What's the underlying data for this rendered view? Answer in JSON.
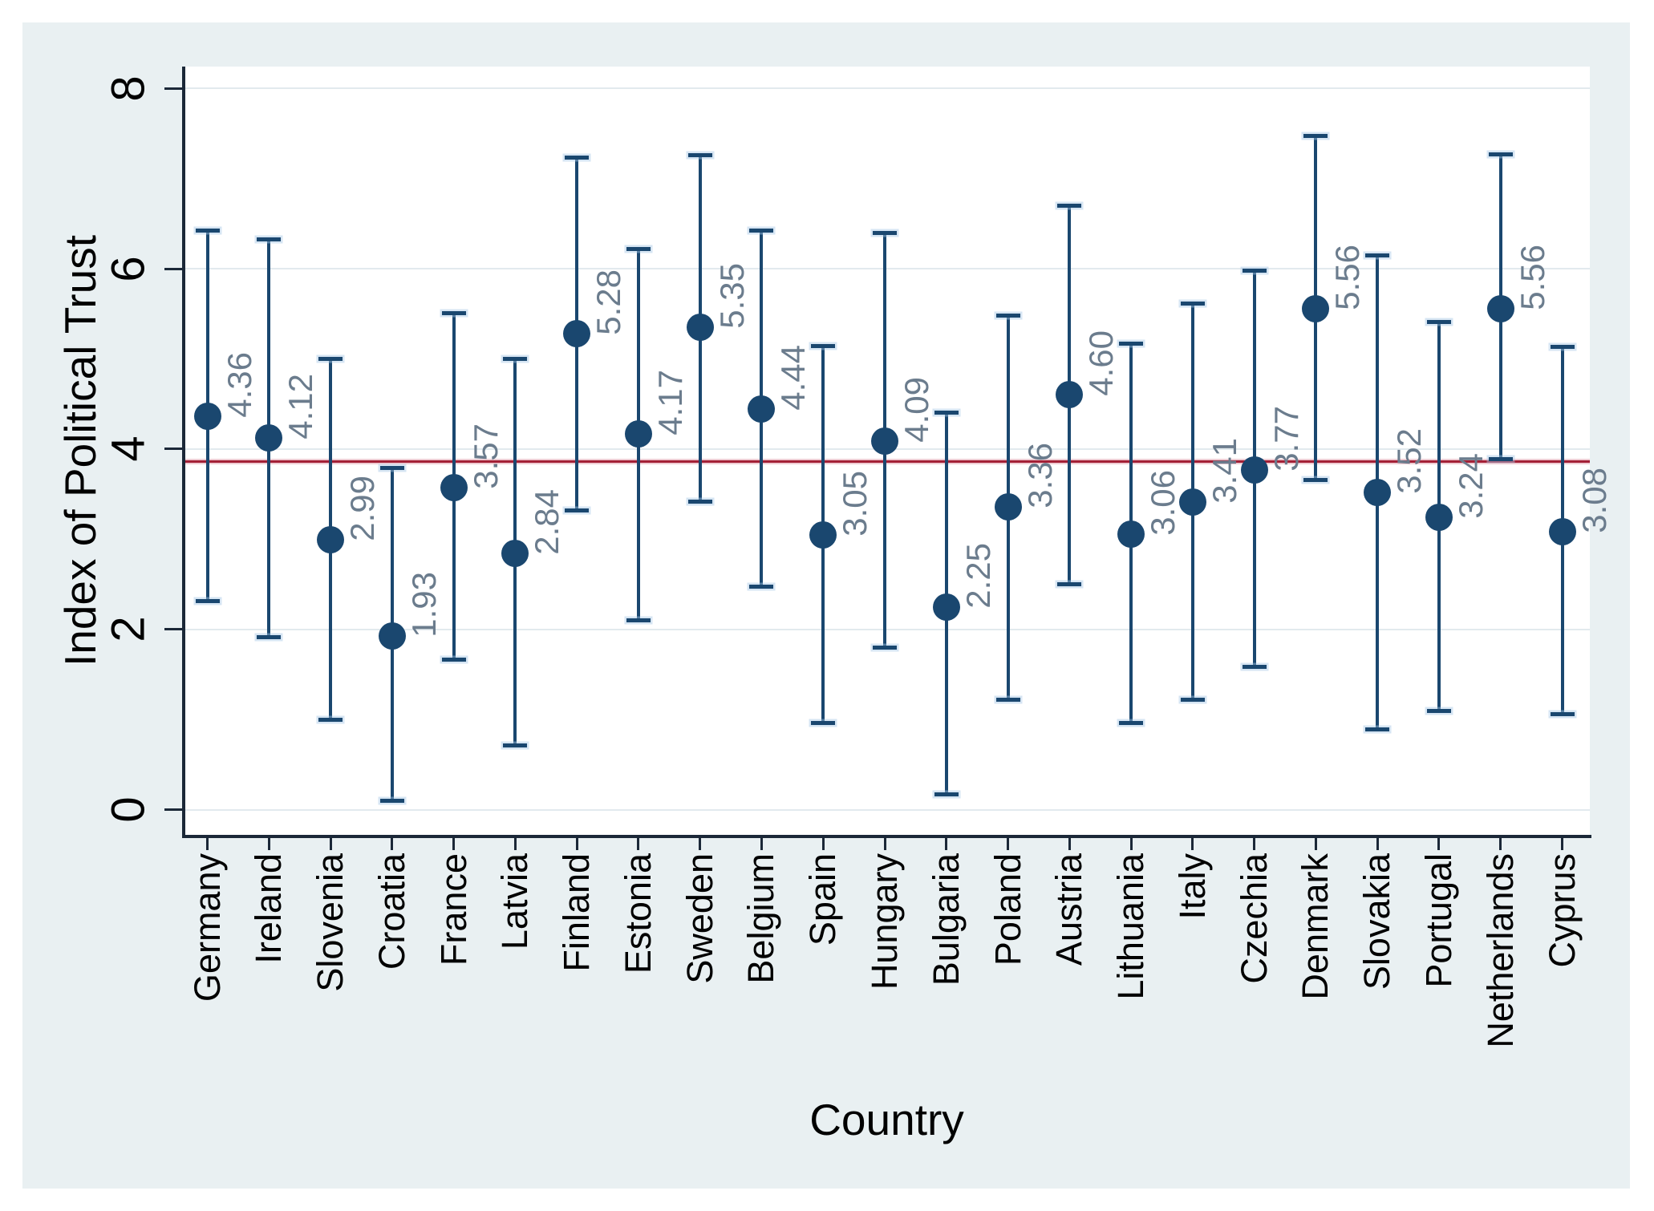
{
  "chart_data": {
    "type": "scatter",
    "subtype": "point-estimates-with-error-bars",
    "title": "",
    "xlabel": "Country",
    "ylabel": "Index of Political Trust",
    "categories": [
      "Germany",
      "Ireland",
      "Slovenia",
      "Croatia",
      "France",
      "Latvia",
      "Finland",
      "Estonia",
      "Sweden",
      "Belgium",
      "Spain",
      "Hungary",
      "Bulgaria",
      "Poland",
      "Austria",
      "Lithuania",
      "Italy",
      "Czechia",
      "Denmark",
      "Slovakia",
      "Portugal",
      "Netherlands",
      "Cyprus"
    ],
    "values": [
      4.36,
      4.12,
      2.99,
      1.93,
      3.57,
      2.84,
      5.28,
      4.17,
      5.35,
      4.44,
      3.05,
      4.09,
      2.25,
      3.36,
      4.6,
      3.06,
      3.41,
      3.77,
      5.56,
      3.52,
      3.24,
      5.56,
      3.08
    ],
    "value_labels": [
      "4.36",
      "4.12",
      "2.99",
      "1.93",
      "3.57",
      "2.84",
      "5.28",
      "4.17",
      "5.35",
      "4.44",
      "3.05",
      "4.09",
      "2.25",
      "3.36",
      "4.60",
      "3.06",
      "3.41",
      "3.77",
      "5.56",
      "3.52",
      "3.24",
      "5.56",
      "3.08"
    ],
    "ci_lower": [
      2.31,
      1.91,
      1.0,
      0.1,
      1.66,
      0.71,
      3.32,
      2.1,
      3.42,
      2.47,
      0.96,
      1.8,
      0.17,
      1.22,
      2.5,
      0.96,
      1.22,
      1.58,
      3.66,
      0.89,
      1.09,
      3.89,
      1.06
    ],
    "ci_upper": [
      6.42,
      6.33,
      5.0,
      3.79,
      5.51,
      5.0,
      7.23,
      6.22,
      7.26,
      6.42,
      5.14,
      6.4,
      4.4,
      5.48,
      6.7,
      5.17,
      5.61,
      5.98,
      7.47,
      6.15,
      5.41,
      7.27,
      5.13
    ],
    "ylim": [
      0,
      8
    ],
    "yticks": [
      0,
      2,
      4,
      6,
      8
    ],
    "grid": "horizontal",
    "legend": "none",
    "reference_line": {
      "value": 3.86
    },
    "colors": {
      "marker": "#1a476f",
      "reference_line": "#a32036",
      "value_label": "#6b7c8d",
      "canvas_bg": "#e9f0f2",
      "plot_bg": "#ffffff",
      "gridline": "#e2eaee",
      "axis": "#1b2838",
      "text": "#000000"
    }
  }
}
